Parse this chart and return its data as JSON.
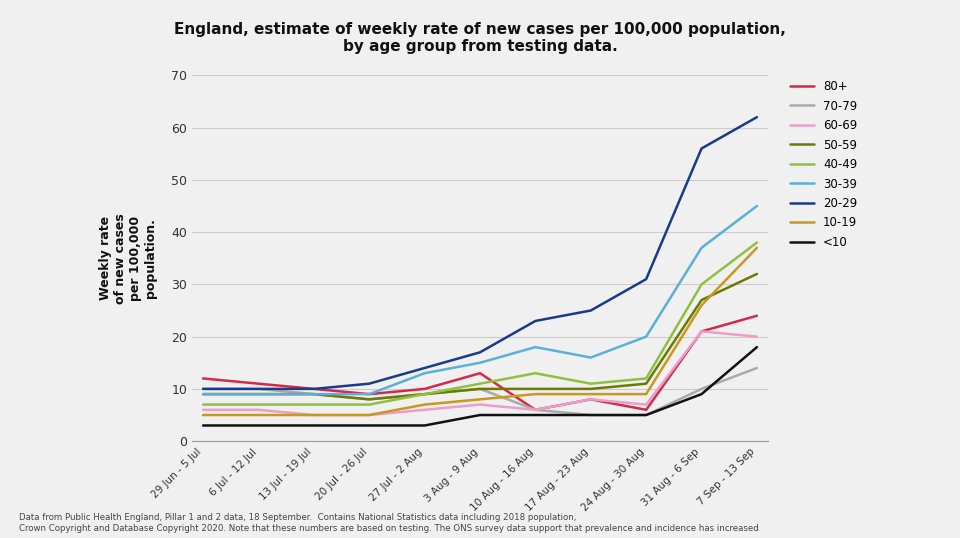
{
  "title": "England, estimate of weekly rate of new cases per 100,000 population,\nby age group from testing data.",
  "ylabel": "Weekly rate\nof new cases\nper 100,000\npopulation.",
  "x_labels": [
    "29 Jun - 5 Jul",
    "6 Jul - 12 Jul",
    "13 Jul - 19 Jul",
    "20 Jul - 26 Jul",
    "27 Jul - 2 Aug",
    "3 Aug - 9 Aug",
    "10 Aug - 16 Aug",
    "17 Aug - 23 Aug",
    "24 Aug - 30 Aug",
    "31 Aug - 6 Sep",
    "7 Sep - 13 Sep"
  ],
  "series": {
    "80+": [
      12,
      11,
      10,
      9,
      10,
      13,
      6,
      8,
      6,
      21,
      24
    ],
    "70-79": [
      10,
      10,
      9,
      8,
      9,
      10,
      6,
      5,
      5,
      10,
      14
    ],
    "60-69": [
      6,
      6,
      5,
      5,
      6,
      7,
      6,
      8,
      7,
      21,
      20
    ],
    "50-59": [
      9,
      9,
      9,
      8,
      9,
      10,
      10,
      10,
      11,
      27,
      32
    ],
    "40-49": [
      7,
      7,
      7,
      7,
      9,
      11,
      13,
      11,
      12,
      30,
      38
    ],
    "30-39": [
      9,
      9,
      9,
      9,
      13,
      15,
      18,
      16,
      20,
      37,
      45
    ],
    "20-29": [
      10,
      10,
      10,
      11,
      14,
      17,
      23,
      25,
      31,
      56,
      62
    ],
    "10-19": [
      5,
      5,
      5,
      5,
      7,
      8,
      9,
      9,
      9,
      26,
      37
    ],
    "<10": [
      3,
      3,
      3,
      3,
      3,
      5,
      5,
      5,
      5,
      9,
      18
    ]
  },
  "colors": {
    "80+": "#d4294a",
    "70-79": "#aaaaaa",
    "60-69": "#e8a0c8",
    "50-59": "#6b7a00",
    "40-49": "#90c040",
    "30-39": "#5ab0d8",
    "20-29": "#1a3a8a",
    "10-19": "#c89820",
    "<10": "#111111"
  },
  "ylim": [
    0,
    70
  ],
  "yticks": [
    0,
    10,
    20,
    30,
    40,
    50,
    60,
    70
  ],
  "footnote": "Data from Public Health England, Pillar 1 and 2 data, 18 September.  Contains National Statistics data including 2018 population,\nCrown Copyright and Database Copyright 2020. Note that these numbers are based on testing. The ONS survey data support that prevalence and incidence has increased",
  "bg_color": "#f0f0f0"
}
